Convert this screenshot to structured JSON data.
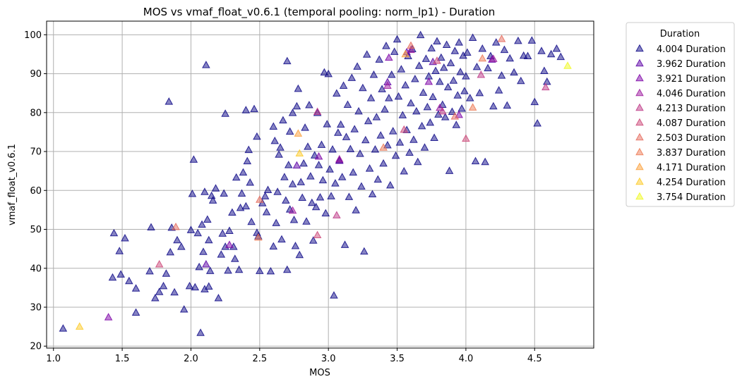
{
  "chart_data": {
    "type": "scatter",
    "title": "MOS vs vmaf_float_v0.6.1 (temporal pooling: norm_lp1) - Duration",
    "xlabel": "MOS",
    "ylabel": "vmaf_float_v0.6.1",
    "xlim": [
      0.95,
      4.93
    ],
    "ylim": [
      19.5,
      103.5
    ],
    "xticks": [
      1.0,
      1.5,
      2.0,
      2.5,
      3.0,
      3.5,
      4.0,
      4.5
    ],
    "xtick_labels": [
      "1.0",
      "1.5",
      "2.0",
      "2.5",
      "3.0",
      "3.5",
      "4.0",
      "4.5"
    ],
    "yticks": [
      20,
      30,
      40,
      50,
      60,
      70,
      80,
      90,
      100
    ],
    "ytick_labels": [
      "20",
      "30",
      "40",
      "50",
      "60",
      "70",
      "80",
      "90",
      "100"
    ],
    "grid": true,
    "marker": "triangle-up",
    "legend": {
      "title": "Duration",
      "placement": "outside-right-top"
    },
    "series": [
      {
        "name": "4.004 Duration",
        "color": "#0d0887",
        "points": [
          [
            1.07,
            24.5
          ],
          [
            1.43,
            37.6
          ],
          [
            1.44,
            49.0
          ],
          [
            1.48,
            44.4
          ],
          [
            1.49,
            38.4
          ],
          [
            1.52,
            47.7
          ],
          [
            1.55,
            36.7
          ],
          [
            1.6,
            34.8
          ],
          [
            1.6,
            28.6
          ],
          [
            1.7,
            39.2
          ],
          [
            1.71,
            50.5
          ],
          [
            1.74,
            32.3
          ],
          [
            1.77,
            33.9
          ],
          [
            1.8,
            35.4
          ],
          [
            1.82,
            38.6
          ],
          [
            1.85,
            44.1
          ],
          [
            1.86,
            50.4
          ],
          [
            1.88,
            33.8
          ],
          [
            1.9,
            47.2
          ],
          [
            1.93,
            45.5
          ],
          [
            1.95,
            29.4
          ],
          [
            1.99,
            35.4
          ],
          [
            2.0,
            49.8
          ],
          [
            2.01,
            59.1
          ],
          [
            2.02,
            67.9
          ],
          [
            2.03,
            35.1
          ],
          [
            2.05,
            49.0
          ],
          [
            2.06,
            40.3
          ],
          [
            2.07,
            23.4
          ],
          [
            2.08,
            51.2
          ],
          [
            2.09,
            44.2
          ],
          [
            2.1,
            34.6
          ],
          [
            2.1,
            59.6
          ],
          [
            2.12,
            52.5
          ],
          [
            2.13,
            35.3
          ],
          [
            2.13,
            47.2
          ],
          [
            2.14,
            39.3
          ],
          [
            2.15,
            58.6
          ],
          [
            2.16,
            57.4
          ],
          [
            2.18,
            60.5
          ],
          [
            2.2,
            32.3
          ],
          [
            2.22,
            43.5
          ],
          [
            2.23,
            48.9
          ],
          [
            2.24,
            59.2
          ],
          [
            2.25,
            45.5
          ],
          [
            2.27,
            39.4
          ],
          [
            2.28,
            49.6
          ],
          [
            2.3,
            54.3
          ],
          [
            2.31,
            45.5
          ],
          [
            2.32,
            42.4
          ],
          [
            2.33,
            63.3
          ],
          [
            2.35,
            39.6
          ],
          [
            2.36,
            55.5
          ],
          [
            2.37,
            59.2
          ],
          [
            2.38,
            64.6
          ],
          [
            2.4,
            55.9
          ],
          [
            2.4,
            80.6
          ],
          [
            2.41,
            67.5
          ],
          [
            2.42,
            70.4
          ],
          [
            2.43,
            62.0
          ],
          [
            2.44,
            51.9
          ],
          [
            2.46,
            80.9
          ],
          [
            2.48,
            49.1
          ],
          [
            2.48,
            73.8
          ],
          [
            2.49,
            48.2
          ],
          [
            2.5,
            39.3
          ],
          [
            2.52,
            56.7
          ],
          [
            2.54,
            58.5
          ],
          [
            2.55,
            54.4
          ],
          [
            2.56,
            60.1
          ],
          [
            2.58,
            39.2
          ],
          [
            2.6,
            76.4
          ],
          [
            2.6,
            45.6
          ],
          [
            2.61,
            72.7
          ],
          [
            2.62,
            51.6
          ],
          [
            2.63,
            59.6
          ],
          [
            2.64,
            69.2
          ],
          [
            2.65,
            71.0
          ],
          [
            2.66,
            47.4
          ],
          [
            2.67,
            78.0
          ],
          [
            2.68,
            63.4
          ],
          [
            2.69,
            57.4
          ],
          [
            2.7,
            39.6
          ],
          [
            2.71,
            66.5
          ],
          [
            2.72,
            75.1
          ],
          [
            2.72,
            55.1
          ],
          [
            2.74,
            79.9
          ],
          [
            2.74,
            61.6
          ],
          [
            2.75,
            52.4
          ],
          [
            2.76,
            45.7
          ],
          [
            2.77,
            81.6
          ],
          [
            2.78,
            86.1
          ],
          [
            2.79,
            43.4
          ],
          [
            2.8,
            62.1
          ],
          [
            2.81,
            58.1
          ],
          [
            2.82,
            66.9
          ],
          [
            2.83,
            76.1
          ],
          [
            2.84,
            52.0
          ],
          [
            2.85,
            71.2
          ],
          [
            2.86,
            81.9
          ],
          [
            2.87,
            63.6
          ],
          [
            2.88,
            56.8
          ],
          [
            2.89,
            47.1
          ],
          [
            2.9,
            69.0
          ],
          [
            2.91,
            55.7
          ],
          [
            2.92,
            79.9
          ],
          [
            2.93,
            66.5
          ],
          [
            2.94,
            58.2
          ],
          [
            2.95,
            71.7
          ],
          [
            2.96,
            62.6
          ],
          [
            2.97,
            90.3
          ],
          [
            2.98,
            54.1
          ],
          [
            2.99,
            77.0
          ],
          [
            3.0,
            89.9
          ],
          [
            3.01,
            65.4
          ],
          [
            3.02,
            58.5
          ],
          [
            3.03,
            70.5
          ],
          [
            3.04,
            33.0
          ],
          [
            3.05,
            61.8
          ],
          [
            3.06,
            84.9
          ],
          [
            3.07,
            74.8
          ],
          [
            3.08,
            67.7
          ],
          [
            3.09,
            76.9
          ],
          [
            3.1,
            63.4
          ],
          [
            3.11,
            86.9
          ],
          [
            3.12,
            46.0
          ],
          [
            3.13,
            73.7
          ],
          [
            3.14,
            82.0
          ],
          [
            3.15,
            58.3
          ],
          [
            3.16,
            70.6
          ],
          [
            3.17,
            88.9
          ],
          [
            3.18,
            64.6
          ],
          [
            3.19,
            75.7
          ],
          [
            3.2,
            54.9
          ],
          [
            3.21,
            91.8
          ],
          [
            3.22,
            80.3
          ],
          [
            3.23,
            69.4
          ],
          [
            3.24,
            61.0
          ],
          [
            3.25,
            86.3
          ],
          [
            3.26,
            44.3
          ],
          [
            3.27,
            72.9
          ],
          [
            3.28,
            94.9
          ],
          [
            3.29,
            77.8
          ],
          [
            3.3,
            65.6
          ],
          [
            3.31,
            83.7
          ],
          [
            3.32,
            59.0
          ],
          [
            3.33,
            89.7
          ],
          [
            3.34,
            70.5
          ],
          [
            3.35,
            78.8
          ],
          [
            3.36,
            62.8
          ],
          [
            3.37,
            93.6
          ],
          [
            3.38,
            74.1
          ],
          [
            3.39,
            86.0
          ],
          [
            3.4,
            66.9
          ],
          [
            3.41,
            80.8
          ],
          [
            3.42,
            97.1
          ],
          [
            3.43,
            71.6
          ],
          [
            3.44,
            83.7
          ],
          [
            3.45,
            61.3
          ],
          [
            3.46,
            89.7
          ],
          [
            3.47,
            75.2
          ],
          [
            3.48,
            95.6
          ],
          [
            3.49,
            68.9
          ],
          [
            3.5,
            98.8
          ],
          [
            3.51,
            84.1
          ],
          [
            3.52,
            72.3
          ],
          [
            3.53,
            91.1
          ],
          [
            3.54,
            79.3
          ],
          [
            3.55,
            64.9
          ],
          [
            3.56,
            87.0
          ],
          [
            3.57,
            75.5
          ],
          [
            3.58,
            94.5
          ],
          [
            3.59,
            69.7
          ],
          [
            3.6,
            82.4
          ],
          [
            3.61,
            96.3
          ],
          [
            3.62,
            73.0
          ],
          [
            3.63,
            88.6
          ],
          [
            3.64,
            80.3
          ],
          [
            3.65,
            67.3
          ],
          [
            3.66,
            92.0
          ],
          [
            3.67,
            99.9
          ],
          [
            3.68,
            76.5
          ],
          [
            3.69,
            85.1
          ],
          [
            3.7,
            71.0
          ],
          [
            3.71,
            93.8
          ],
          [
            3.72,
            81.4
          ],
          [
            3.73,
            89.3
          ],
          [
            3.74,
            77.4
          ],
          [
            3.75,
            96.5
          ],
          [
            3.76,
            84.0
          ],
          [
            3.77,
            73.5
          ],
          [
            3.78,
            90.7
          ],
          [
            3.79,
            98.3
          ],
          [
            3.8,
            79.5
          ],
          [
            3.81,
            87.9
          ],
          [
            3.82,
            94.1
          ],
          [
            3.83,
            82.0
          ],
          [
            3.84,
            91.5
          ],
          [
            3.85,
            78.8
          ],
          [
            3.86,
            97.4
          ],
          [
            3.87,
            86.5
          ],
          [
            3.88,
            65.0
          ],
          [
            3.89,
            92.7
          ],
          [
            3.9,
            80.2
          ],
          [
            3.91,
            88.2
          ],
          [
            3.92,
            95.8
          ],
          [
            3.93,
            76.8
          ],
          [
            3.94,
            84.4
          ],
          [
            3.95,
            98.0
          ],
          [
            3.96,
            90.4
          ],
          [
            3.97,
            81.0
          ],
          [
            3.98,
            94.6
          ],
          [
            3.99,
            85.5
          ],
          [
            4.0,
            89.3
          ],
          [
            4.01,
            95.4
          ],
          [
            4.03,
            83.7
          ],
          [
            4.05,
            99.2
          ],
          [
            4.07,
            67.5
          ],
          [
            4.08,
            91.7
          ],
          [
            4.1,
            85.0
          ],
          [
            4.12,
            96.4
          ],
          [
            4.14,
            67.3
          ],
          [
            4.16,
            91.4
          ],
          [
            4.18,
            94.5
          ],
          [
            4.2,
            81.6
          ],
          [
            4.22,
            98.0
          ],
          [
            4.24,
            85.7
          ],
          [
            4.26,
            89.5
          ],
          [
            4.28,
            96.1
          ],
          [
            4.3,
            81.8
          ],
          [
            4.32,
            93.9
          ],
          [
            4.35,
            90.3
          ],
          [
            4.38,
            98.4
          ],
          [
            4.4,
            88.1
          ],
          [
            4.42,
            94.6
          ],
          [
            4.45,
            94.5
          ],
          [
            4.48,
            98.5
          ],
          [
            4.5,
            82.7
          ],
          [
            4.52,
            77.2
          ],
          [
            4.55,
            95.8
          ],
          [
            4.57,
            90.7
          ],
          [
            4.59,
            87.9
          ],
          [
            4.62,
            95.0
          ],
          [
            4.66,
            96.4
          ],
          [
            4.69,
            94.3
          ],
          [
            1.84,
            82.8
          ],
          [
            2.11,
            92.2
          ],
          [
            2.25,
            79.7
          ],
          [
            2.7,
            93.2
          ]
        ]
      },
      {
        "name": "3.962 Duration",
        "color": "#5c01a6",
        "points": [
          [
            2.11,
            41.0
          ],
          [
            2.77,
            66.4
          ],
          [
            3.08,
            67.6
          ],
          [
            3.43,
            87.8
          ],
          [
            3.57,
            95.5
          ],
          [
            3.76,
            93.0
          ],
          [
            4.19,
            93.6
          ]
        ]
      },
      {
        "name": "3.921 Duration",
        "color": "#7e03a8",
        "points": [
          [
            1.4,
            27.4
          ],
          [
            2.28,
            46.0
          ],
          [
            2.93,
            68.7
          ],
          [
            3.44,
            94.1
          ],
          [
            3.73,
            87.9
          ],
          [
            3.95,
            79.4
          ]
        ]
      },
      {
        "name": "4.046 Duration",
        "color": "#9c179e",
        "points": [
          [
            2.74,
            54.8
          ],
          [
            3.08,
            68.0
          ],
          [
            3.43,
            86.9
          ],
          [
            3.6,
            96.1
          ],
          [
            3.81,
            81.2
          ],
          [
            4.2,
            93.8
          ]
        ]
      },
      {
        "name": "4.213 Duration",
        "color": "#bd3786",
        "points": [
          [
            2.92,
            80.2
          ],
          [
            3.06,
            53.6
          ],
          [
            3.83,
            80.3
          ],
          [
            4.11,
            89.7
          ],
          [
            4.58,
            86.5
          ]
        ]
      },
      {
        "name": "4.087 Duration",
        "color": "#cc4778",
        "points": [
          [
            1.77,
            41.0
          ],
          [
            2.92,
            48.5
          ],
          [
            3.55,
            75.6
          ],
          [
            3.79,
            93.3
          ],
          [
            4.0,
            73.3
          ]
        ]
      },
      {
        "name": "2.503 Duration",
        "color": "#e56b5d",
        "points": [
          [
            1.89,
            50.6
          ],
          [
            2.5,
            57.6
          ],
          [
            3.6,
            97.2
          ],
          [
            3.92,
            79.0
          ],
          [
            4.26,
            98.9
          ]
        ]
      },
      {
        "name": "3.837 Duration",
        "color": "#ed7953",
        "points": [
          [
            2.49,
            47.9
          ],
          [
            3.4,
            71.0
          ],
          [
            4.05,
            81.3
          ],
          [
            4.12,
            93.9
          ]
        ]
      },
      {
        "name": "4.171 Duration",
        "color": "#fb9f3a",
        "points": [
          [
            2.78,
            74.6
          ],
          [
            3.56,
            95.0
          ]
        ]
      },
      {
        "name": "4.254 Duration",
        "color": "#fdca26",
        "points": [
          [
            1.19,
            25.0
          ],
          [
            2.79,
            69.5
          ]
        ]
      },
      {
        "name": "3.754 Duration",
        "color": "#f0f921",
        "points": [
          [
            4.74,
            92.0
          ]
        ]
      }
    ]
  }
}
